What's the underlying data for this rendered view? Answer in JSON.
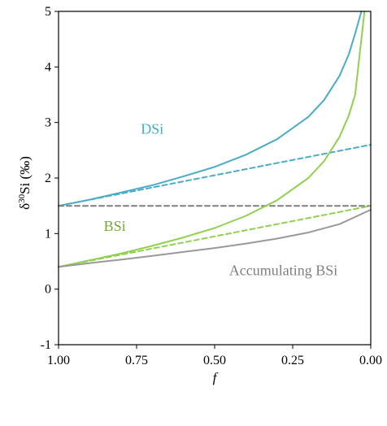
{
  "chart_data": {
    "type": "line",
    "title": "",
    "xlabel": "f",
    "ylabel": "δ³⁰Si (‰)",
    "ylabel_parts": {
      "delta": "δ",
      "sup": "30",
      "rest": "Si (‰)"
    },
    "xlim": [
      1.0,
      0.0
    ],
    "ylim": [
      -1,
      5
    ],
    "x_reversed": true,
    "x_ticks": [
      "1.00",
      "0.75",
      "0.50",
      "0.25",
      "0.00"
    ],
    "x_tick_values": [
      1.0,
      0.75,
      0.5,
      0.25,
      0.0
    ],
    "y_ticks": [
      "-1",
      "0",
      "1",
      "2",
      "3",
      "4",
      "5"
    ],
    "y_tick_values": [
      -1,
      0,
      1,
      2,
      3,
      4,
      5
    ],
    "grid": false,
    "annotations": [
      {
        "text": "DSi",
        "color": "#4bacc6",
        "x": 0.7,
        "y": 2.8
      },
      {
        "text": "BSi",
        "color": "#76a83a",
        "x": 0.82,
        "y": 1.05
      },
      {
        "text": "Accumulating BSi",
        "color": "#7f7f7f",
        "x": 0.28,
        "y": 0.25
      }
    ],
    "series": [
      {
        "color": "#4bacc6",
        "dash": false,
        "x": [
          1.0,
          0.9,
          0.8,
          0.7,
          0.6,
          0.5,
          0.4,
          0.3,
          0.2,
          0.15,
          0.1,
          0.07,
          0.05,
          0.03
        ],
        "y": [
          1.5,
          1.61,
          1.74,
          1.87,
          2.03,
          2.2,
          2.42,
          2.7,
          3.1,
          3.4,
          3.84,
          4.23,
          4.6,
          5.0
        ]
      },
      {
        "color": "#4bacc6",
        "dash": true,
        "x": [
          1.0,
          0.0
        ],
        "y": [
          1.5,
          2.6
        ]
      },
      {
        "color": "#7f7f7f",
        "dash": true,
        "x": [
          1.0,
          0.0
        ],
        "y": [
          1.5,
          1.5
        ]
      },
      {
        "color": "#92d050",
        "dash": false,
        "x": [
          1.0,
          0.9,
          0.8,
          0.7,
          0.6,
          0.5,
          0.4,
          0.3,
          0.2,
          0.15,
          0.1,
          0.07,
          0.05,
          0.02
        ],
        "y": [
          0.4,
          0.52,
          0.64,
          0.78,
          0.93,
          1.1,
          1.32,
          1.6,
          2.0,
          2.3,
          2.74,
          3.13,
          3.5,
          5.0
        ]
      },
      {
        "color": "#92d050",
        "dash": true,
        "x": [
          1.0,
          0.0
        ],
        "y": [
          0.4,
          1.5
        ]
      },
      {
        "color": "#999999",
        "dash": false,
        "x": [
          1.0,
          0.9,
          0.8,
          0.7,
          0.6,
          0.5,
          0.4,
          0.3,
          0.2,
          0.1,
          0.0
        ],
        "y": [
          0.4,
          0.47,
          0.53,
          0.6,
          0.67,
          0.74,
          0.82,
          0.91,
          1.02,
          1.17,
          1.43
        ]
      }
    ]
  }
}
